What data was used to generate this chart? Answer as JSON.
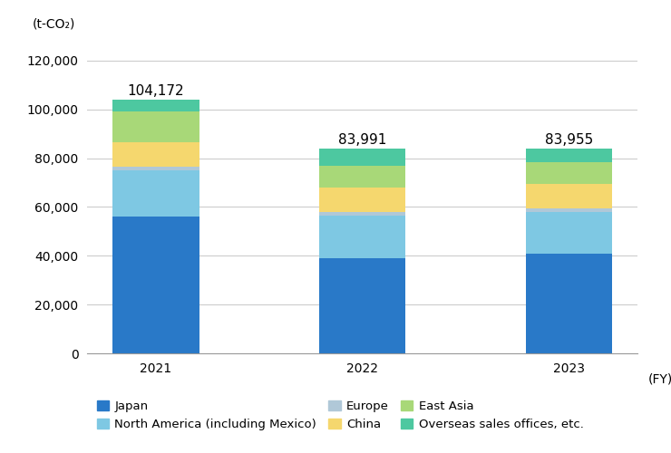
{
  "years": [
    "2021",
    "2022",
    "2023"
  ],
  "totals": [
    104172,
    83991,
    83955
  ],
  "segments": {
    "Japan": [
      56000,
      39000,
      41000
    ],
    "North America (including Mexico)": [
      19000,
      17500,
      17000
    ],
    "Europe": [
      1500,
      1500,
      1500
    ],
    "China": [
      10000,
      10000,
      10000
    ],
    "East Asia": [
      12500,
      9000,
      9000
    ],
    "Overseas sales offices, etc.": [
      5172,
      6991,
      5455
    ]
  },
  "colors": {
    "Japan": "#2979C8",
    "North America (including Mexico)": "#7EC8E3",
    "Europe": "#B0C8D8",
    "China": "#F5D76E",
    "East Asia": "#A8D878",
    "Overseas sales offices, etc.": "#4DC8A0"
  },
  "ylabel": "(t-CO₂)",
  "xlabel_fy": "(FY)",
  "ylim": [
    0,
    130000
  ],
  "yticks": [
    0,
    20000,
    40000,
    60000,
    80000,
    100000,
    120000
  ],
  "bar_width": 0.42,
  "total_fontsize": 11,
  "legend_fontsize": 9.5,
  "axis_label_fontsize": 10,
  "tick_fontsize": 10,
  "background_color": "#ffffff",
  "grid_color": "#cccccc"
}
